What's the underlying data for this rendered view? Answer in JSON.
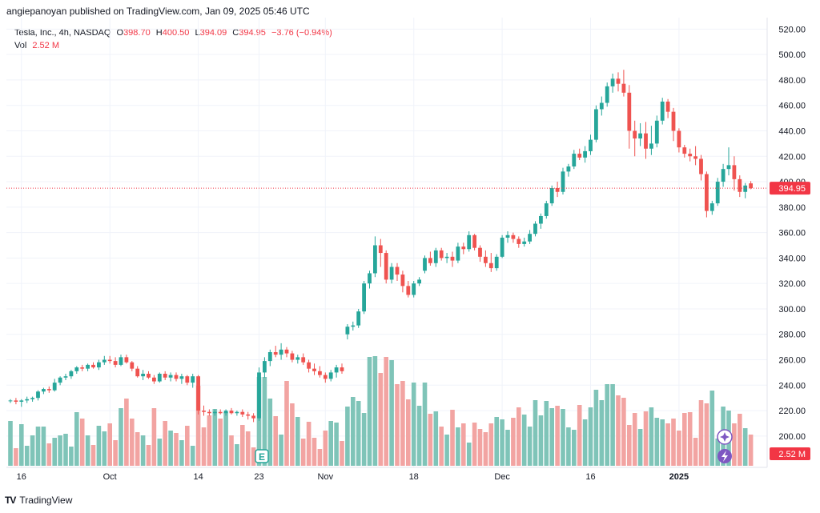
{
  "publisher": "angiepanoyan published on TradingView.com, Jan 09, 2025 05:46 UTC",
  "legend": {
    "symbol": "Tesla, Inc., 4h, NASDAQ",
    "o_label": "O",
    "o": "398.70",
    "h_label": "H",
    "h": "400.50",
    "l_label": "L",
    "l": "394.09",
    "c_label": "C",
    "c": "394.95",
    "change": "−3.76 (−0.94%)",
    "vol_label": "Vol",
    "vol": "2.52 M"
  },
  "brand": {
    "logo": "TV",
    "name": "TradingView"
  },
  "colors": {
    "up": "#26a69a",
    "down": "#ef5350",
    "up_vol": "#7fc4b8",
    "down_vol": "#f2a4a2",
    "price_line": "#f23645",
    "grid": "#f0f3fa",
    "axis_text": "#131722",
    "icon": "#7e57c2"
  },
  "icons": [
    "earnings-icon",
    "sparkle-icon",
    "lightning-icon"
  ],
  "chart_data": {
    "type": "candlestick",
    "symbol": "TSLA",
    "interval": "4h",
    "x_tick_labels": [
      "16",
      "Oct",
      "14",
      "23",
      "Nov",
      "18",
      "Dec",
      "16",
      "2025"
    ],
    "y_tick_labels": [
      "200.00",
      "220.00",
      "240.00",
      "260.00",
      "280.00",
      "300.00",
      "320.00",
      "340.00",
      "360.00",
      "380.00",
      "400.00",
      "420.00",
      "440.00",
      "460.00",
      "480.00",
      "500.00",
      "520.00"
    ],
    "ylim": [
      193,
      524
    ],
    "last_price": 394.95,
    "last_price_label": "394.95",
    "last_volume_label": "2.52 M",
    "grid": true,
    "x_tick_index": [
      2,
      18,
      34,
      45,
      57,
      73,
      89,
      105,
      121
    ],
    "candles": [
      [
        228,
        229,
        226,
        228
      ],
      [
        228,
        230,
        225,
        227
      ],
      [
        227,
        229,
        223,
        228
      ],
      [
        228,
        231,
        226,
        229
      ],
      [
        229,
        231,
        227,
        230
      ],
      [
        230,
        236,
        228,
        235
      ],
      [
        235,
        238,
        233,
        237
      ],
      [
        237,
        239,
        234,
        236
      ],
      [
        236,
        245,
        235,
        242
      ],
      [
        242,
        247,
        240,
        246
      ],
      [
        246,
        249,
        244,
        247
      ],
      [
        247,
        252,
        245,
        251
      ],
      [
        251,
        255,
        249,
        254
      ],
      [
        254,
        256,
        251,
        253
      ],
      [
        253,
        257,
        251,
        256
      ],
      [
        256,
        258,
        253,
        254
      ],
      [
        254,
        260,
        252,
        258
      ],
      [
        258,
        263,
        256,
        260
      ],
      [
        260,
        263,
        257,
        259
      ],
      [
        259,
        262,
        254,
        256
      ],
      [
        256,
        264,
        255,
        262
      ],
      [
        262,
        264,
        257,
        258
      ],
      [
        258,
        259,
        251,
        253
      ],
      [
        253,
        255,
        246,
        247
      ],
      [
        247,
        252,
        244,
        249
      ],
      [
        249,
        251,
        245,
        246
      ],
      [
        246,
        248,
        241,
        243
      ],
      [
        243,
        250,
        242,
        249
      ],
      [
        249,
        251,
        244,
        246
      ],
      [
        246,
        250,
        243,
        248
      ],
      [
        248,
        250,
        243,
        245
      ],
      [
        245,
        249,
        241,
        247
      ],
      [
        247,
        248,
        240,
        242
      ],
      [
        242,
        249,
        238,
        247
      ],
      [
        247,
        248,
        217,
        220
      ],
      [
        220,
        224,
        216,
        219
      ],
      [
        219,
        221,
        216,
        218
      ],
      [
        218,
        221,
        216,
        219
      ],
      [
        219,
        221,
        217,
        218
      ],
      [
        218,
        221,
        216,
        220
      ],
      [
        220,
        222,
        217,
        218
      ],
      [
        218,
        220,
        216,
        219
      ],
      [
        219,
        221,
        215,
        217
      ],
      [
        217,
        219,
        213,
        216
      ],
      [
        216,
        218,
        211,
        214
      ],
      [
        214,
        254,
        212,
        250
      ],
      [
        250,
        262,
        246,
        259
      ],
      [
        259,
        268,
        255,
        266
      ],
      [
        266,
        271,
        262,
        264
      ],
      [
        264,
        273,
        260,
        268
      ],
      [
        268,
        270,
        262,
        265
      ],
      [
        265,
        267,
        258,
        260
      ],
      [
        260,
        264,
        257,
        262
      ],
      [
        262,
        265,
        256,
        258
      ],
      [
        258,
        260,
        250,
        253
      ],
      [
        253,
        257,
        248,
        251
      ],
      [
        251,
        255,
        246,
        248
      ],
      [
        248,
        250,
        242,
        245
      ],
      [
        245,
        252,
        243,
        250
      ],
      [
        250,
        256,
        246,
        254
      ],
      [
        254,
        257,
        249,
        251
      ],
      [
        280,
        288,
        276,
        286
      ],
      [
        286,
        290,
        283,
        287
      ],
      [
        287,
        300,
        285,
        298
      ],
      [
        298,
        322,
        296,
        320
      ],
      [
        320,
        330,
        316,
        328
      ],
      [
        328,
        357,
        325,
        350
      ],
      [
        350,
        355,
        333,
        344
      ],
      [
        344,
        346,
        320,
        323
      ],
      [
        323,
        336,
        320,
        333
      ],
      [
        333,
        336,
        322,
        327
      ],
      [
        327,
        330,
        313,
        318
      ],
      [
        318,
        322,
        309,
        311
      ],
      [
        311,
        322,
        309,
        320
      ],
      [
        320,
        325,
        318,
        323
      ],
      [
        330,
        342,
        328,
        340
      ],
      [
        340,
        345,
        334,
        336
      ],
      [
        336,
        348,
        333,
        346
      ],
      [
        346,
        348,
        338,
        340
      ],
      [
        340,
        344,
        336,
        341
      ],
      [
        341,
        345,
        333,
        338
      ],
      [
        338,
        352,
        336,
        349
      ],
      [
        349,
        352,
        343,
        347
      ],
      [
        347,
        361,
        345,
        358
      ],
      [
        358,
        359,
        346,
        348
      ],
      [
        348,
        350,
        337,
        341
      ],
      [
        341,
        346,
        333,
        336
      ],
      [
        336,
        344,
        329,
        332
      ],
      [
        332,
        343,
        330,
        341
      ],
      [
        341,
        358,
        340,
        356
      ],
      [
        356,
        361,
        352,
        358
      ],
      [
        358,
        360,
        352,
        355
      ],
      [
        355,
        357,
        348,
        351
      ],
      [
        351,
        356,
        349,
        353
      ],
      [
        353,
        362,
        351,
        359
      ],
      [
        359,
        369,
        357,
        367
      ],
      [
        367,
        375,
        363,
        373
      ],
      [
        373,
        385,
        371,
        383
      ],
      [
        383,
        397,
        381,
        395
      ],
      [
        395,
        400,
        388,
        392
      ],
      [
        392,
        411,
        390,
        408
      ],
      [
        408,
        414,
        404,
        412
      ],
      [
        412,
        425,
        410,
        422
      ],
      [
        422,
        426,
        417,
        419
      ],
      [
        419,
        428,
        415,
        424
      ],
      [
        424,
        437,
        421,
        433
      ],
      [
        433,
        460,
        431,
        457
      ],
      [
        457,
        467,
        452,
        462
      ],
      [
        462,
        478,
        459,
        475
      ],
      [
        475,
        485,
        470,
        481
      ],
      [
        481,
        486,
        471,
        477
      ],
      [
        477,
        488,
        467,
        470
      ],
      [
        470,
        476,
        426,
        440
      ],
      [
        440,
        448,
        420,
        434
      ],
      [
        434,
        446,
        428,
        438
      ],
      [
        438,
        447,
        418,
        426
      ],
      [
        426,
        444,
        421,
        430
      ],
      [
        430,
        452,
        427,
        448
      ],
      [
        448,
        466,
        445,
        463
      ],
      [
        463,
        465,
        450,
        455
      ],
      [
        455,
        458,
        432,
        440
      ],
      [
        440,
        442,
        423,
        427
      ],
      [
        427,
        429,
        419,
        422
      ],
      [
        422,
        426,
        416,
        420
      ],
      [
        420,
        428,
        413,
        418
      ],
      [
        418,
        421,
        401,
        406
      ],
      [
        406,
        408,
        372,
        377
      ],
      [
        377,
        385,
        374,
        383
      ],
      [
        383,
        403,
        381,
        400
      ],
      [
        400,
        414,
        396,
        410
      ],
      [
        410,
        427,
        405,
        413
      ],
      [
        413,
        420,
        393,
        402
      ],
      [
        402,
        405,
        388,
        392
      ],
      [
        392,
        399,
        387,
        397
      ],
      [
        398.7,
        400.5,
        394.09,
        394.95
      ]
    ],
    "volumes": [
      0.56,
      0.22,
      0.52,
      0.25,
      0.38,
      0.49,
      0.49,
      0.28,
      0.35,
      0.38,
      0.4,
      0.24,
      0.67,
      0.59,
      0.38,
      0.26,
      0.5,
      0.43,
      0.53,
      0.32,
      0.72,
      0.84,
      0.59,
      0.42,
      0.38,
      0.26,
      0.72,
      0.34,
      0.56,
      0.44,
      0.41,
      0.32,
      0.5,
      0.25,
      1.0,
      0.48,
      0.63,
      0.71,
      0.59,
      0.67,
      0.38,
      0.27,
      0.51,
      0.43,
      0.23,
      1.11,
      1.11,
      0.84,
      0.62,
      0.39,
      1.06,
      0.78,
      0.61,
      0.34,
      0.55,
      0.35,
      0.21,
      0.44,
      0.56,
      0.54,
      0.31,
      0.74,
      0.86,
      0.81,
      0.66,
      1.36,
      1.37,
      1.16,
      1.36,
      1.32,
      1.02,
      1.06,
      0.83,
      1.04,
      0.75,
      1.04,
      0.65,
      0.68,
      0.49,
      0.39,
      0.7,
      0.48,
      0.53,
      0.29,
      0.54,
      0.46,
      0.42,
      0.53,
      0.61,
      0.58,
      0.45,
      0.6,
      0.73,
      0.64,
      0.49,
      0.82,
      0.63,
      0.81,
      0.72,
      0.75,
      0.71,
      0.48,
      0.45,
      0.76,
      0.58,
      0.73,
      0.95,
      0.82,
      1.02,
      1.02,
      0.88,
      0.85,
      0.51,
      0.66,
      0.46,
      0.68,
      0.73,
      0.6,
      0.58,
      0.53,
      0.59,
      0.44,
      0.66,
      0.67,
      0.35,
      0.82,
      0.78,
      0.94,
      0.34,
      0.74,
      0.69,
      0.53,
      0.65,
      0.47,
      0.39
    ],
    "volume_scale_max": 1.4
  }
}
